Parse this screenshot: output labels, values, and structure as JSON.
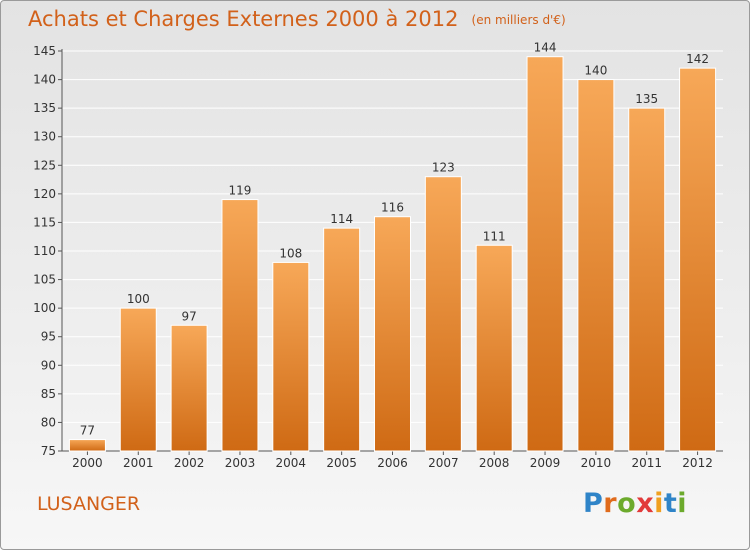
{
  "header": {
    "title": "Achats et Charges Externes 2000 à 2012",
    "unit": "(en milliers d'€)"
  },
  "footer": {
    "location": "LUSANGER",
    "logo_letters": [
      {
        "ch": "P",
        "color": "#2f84c8"
      },
      {
        "ch": "r",
        "color": "#e06b1c"
      },
      {
        "ch": "o",
        "color": "#6caa2c"
      },
      {
        "ch": "x",
        "color": "#e23a3a"
      },
      {
        "ch": "i",
        "color": "#f0a020"
      },
      {
        "ch": "t",
        "color": "#2f84c8"
      },
      {
        "ch": "i",
        "color": "#6caa2c"
      }
    ]
  },
  "chart_data": {
    "type": "bar",
    "title": "Achats et Charges Externes 2000 à 2012",
    "subtitle": "(en milliers d'€)",
    "categories": [
      "2000",
      "2001",
      "2002",
      "2003",
      "2004",
      "2005",
      "2006",
      "2007",
      "2008",
      "2009",
      "2010",
      "2011",
      "2012"
    ],
    "values": [
      77,
      100,
      97,
      119,
      108,
      114,
      116,
      123,
      111,
      144,
      140,
      135,
      142
    ],
    "ylim": [
      75,
      145
    ],
    "yticks": [
      75,
      80,
      85,
      90,
      95,
      100,
      105,
      110,
      115,
      120,
      125,
      130,
      135,
      140,
      145
    ],
    "grid": true,
    "legend": "none",
    "colors": {
      "bar_light": "#f7a858",
      "bar_dark": "#cf6a14",
      "grid": "#ffffff",
      "text": "#d2611a"
    }
  }
}
